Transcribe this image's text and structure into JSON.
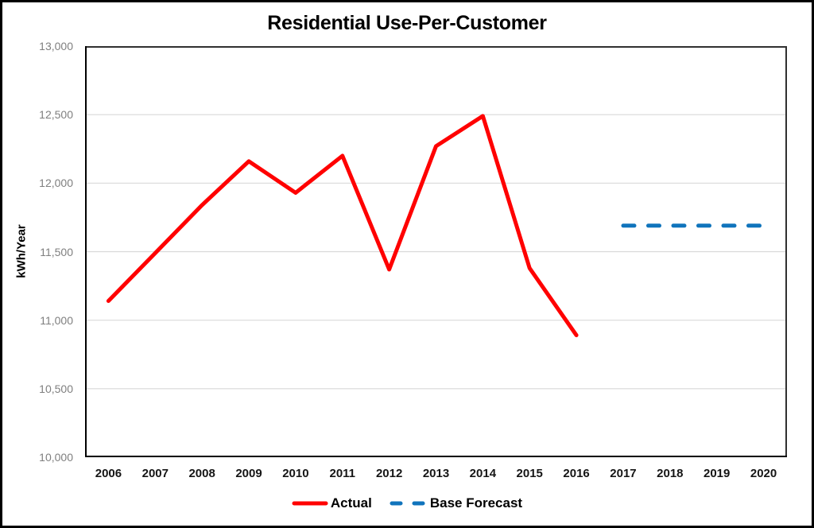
{
  "title": "Residential Use-Per-Customer",
  "y_axis_label": "kWh/Year",
  "colors": {
    "actual": "#FF0000",
    "forecast": "#1074BC",
    "gridline": "#D9D9D9",
    "plot_border": "#303030",
    "axis_line": "#000000",
    "y_tick_text": "#7F7F7F",
    "x_tick_text": "#151515",
    "frame_border": "#000000"
  },
  "chart_data": {
    "type": "line",
    "title": "Residential Use-Per-Customer",
    "xlabel": "",
    "ylabel": "kWh/Year",
    "ylim": [
      10000,
      13000
    ],
    "ytick_interval": 500,
    "ytick_labels": [
      "13,000",
      "12,500",
      "12,000",
      "11,500",
      "11,000",
      "10,500",
      "10,000"
    ],
    "grid": "horizontal",
    "legend_position": "bottom",
    "categories": [
      "2006",
      "2007",
      "2008",
      "2009",
      "2010",
      "2011",
      "2012",
      "2013",
      "2014",
      "2015",
      "2016",
      "2017",
      "2018",
      "2019",
      "2020"
    ],
    "series": [
      {
        "name": "Actual",
        "color": "#FF0000",
        "line_style": "solid",
        "values": [
          11140,
          11490,
          11840,
          12160,
          11930,
          12200,
          11370,
          12270,
          12490,
          11380,
          10890,
          null,
          null,
          null,
          null
        ]
      },
      {
        "name": "Base Forecast",
        "color": "#1074BC",
        "line_style": "dashed",
        "values": [
          null,
          null,
          null,
          null,
          null,
          null,
          null,
          null,
          null,
          null,
          null,
          11690,
          11690,
          11690,
          11690
        ]
      }
    ]
  }
}
